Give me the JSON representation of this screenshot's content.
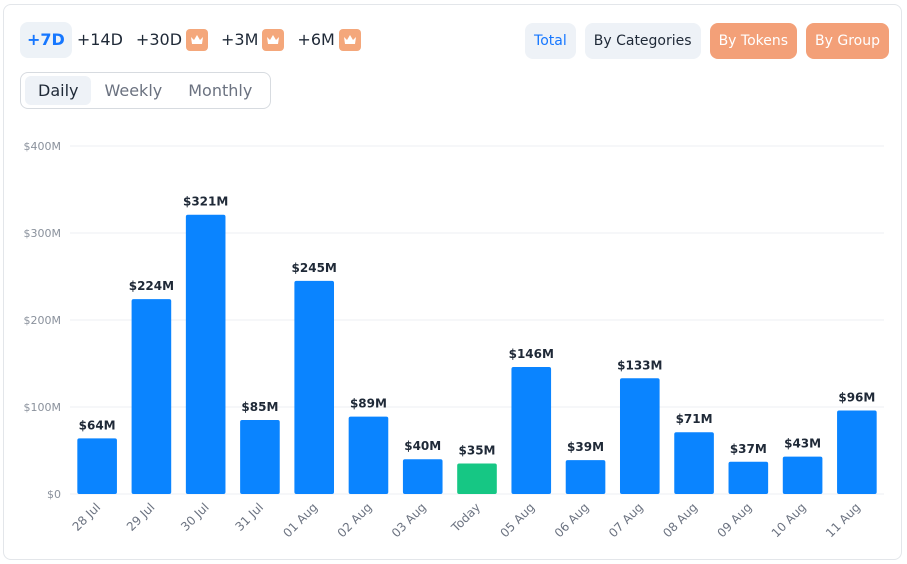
{
  "time_ranges": [
    {
      "label": "+7D",
      "active": true,
      "premium": false
    },
    {
      "label": "+14D",
      "active": false,
      "premium": false
    },
    {
      "label": "+30D",
      "active": false,
      "premium": true
    },
    {
      "label": "+3M",
      "active": false,
      "premium": true
    },
    {
      "label": "+6M",
      "active": false,
      "premium": true
    }
  ],
  "view_buttons": [
    {
      "label": "Total",
      "style": "light",
      "selected": true
    },
    {
      "label": "By Categories",
      "style": "light",
      "selected": false
    },
    {
      "label": "By Tokens",
      "style": "orange",
      "selected": false
    },
    {
      "label": "By Group",
      "style": "orange",
      "selected": false
    }
  ],
  "periods": [
    {
      "label": "Daily",
      "active": true
    },
    {
      "label": "Weekly",
      "active": false
    },
    {
      "label": "Monthly",
      "active": false
    }
  ],
  "colors": {
    "bar": "#0a84ff",
    "today_bar": "#16c784",
    "today_label": "#16c784",
    "grid": "#eceff3",
    "premium": "#f4a77b"
  },
  "chart_data": {
    "type": "bar",
    "categories": [
      "28 Jul",
      "29 Jul",
      "30 Jul",
      "31 Jul",
      "01 Aug",
      "02 Aug",
      "03 Aug",
      "Today",
      "05 Aug",
      "06 Aug",
      "07 Aug",
      "08 Aug",
      "09 Aug",
      "10 Aug",
      "11 Aug"
    ],
    "values": [
      64,
      224,
      321,
      85,
      245,
      89,
      40,
      35,
      146,
      39,
      133,
      71,
      37,
      43,
      96
    ],
    "value_labels": [
      "$64M",
      "$224M",
      "$321M",
      "$85M",
      "$245M",
      "$89M",
      "$40M",
      "$35M",
      "$146M",
      "$39M",
      "$133M",
      "$71M",
      "$37M",
      "$43M",
      "$96M"
    ],
    "highlight_category": "Today",
    "unit": "$M",
    "ylim": [
      0,
      400
    ],
    "yticks": [
      0,
      100,
      200,
      300,
      400
    ],
    "ytick_labels": [
      "$0",
      "$100M",
      "$200M",
      "$300M",
      "$400M"
    ],
    "grid": true
  }
}
